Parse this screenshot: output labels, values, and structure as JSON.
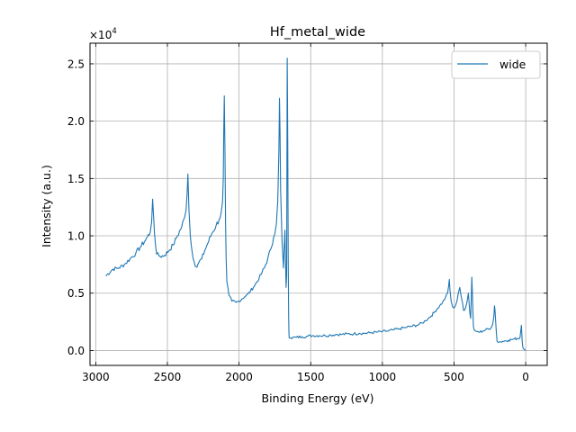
{
  "chart_data": {
    "type": "line",
    "title": "Hf_metal_wide",
    "xlabel": "Binding Energy (eV)",
    "ylabel": "Intensity (a.u.)",
    "y_multiplier_label": "×10",
    "y_multiplier_exponent": "4",
    "xlim": [
      3040,
      -150
    ],
    "ylim": [
      -1300,
      26800
    ],
    "x_reversed": true,
    "grid": true,
    "legend_position": "upper-right",
    "x_ticks": [
      3000,
      2500,
      2000,
      1500,
      1000,
      500,
      0
    ],
    "x_tick_labels": [
      "3000",
      "2500",
      "2000",
      "1500",
      "1000",
      "500",
      "0"
    ],
    "y_ticks": [
      0,
      5000,
      10000,
      15000,
      20000,
      25000
    ],
    "y_tick_labels": [
      "0.0",
      "0.5",
      "1.0",
      "1.5",
      "2.0",
      "2.5"
    ],
    "colors": {
      "series": "#1f77b4",
      "grid": "#b0b0b0",
      "axis": "#000000"
    },
    "series": [
      {
        "name": "wide",
        "x": [
          2930,
          2880,
          2840,
          2800,
          2760,
          2720,
          2690,
          2660,
          2640,
          2620,
          2610,
          2603,
          2598,
          2590,
          2575,
          2550,
          2520,
          2490,
          2460,
          2430,
          2400,
          2380,
          2370,
          2362,
          2357,
          2350,
          2340,
          2320,
          2300,
          2280,
          2260,
          2240,
          2220,
          2190,
          2160,
          2140,
          2125,
          2115,
          2110,
          2107,
          2103,
          2098,
          2094,
          2090,
          2085,
          2070,
          2050,
          2020,
          2000,
          1980,
          1960,
          1940,
          1920,
          1900,
          1880,
          1860,
          1840,
          1820,
          1800,
          1780,
          1760,
          1750,
          1740,
          1730,
          1722,
          1718,
          1714,
          1710,
          1700,
          1690,
          1685,
          1680,
          1676,
          1672,
          1668,
          1664,
          1662,
          1660,
          1657,
          1654,
          1652,
          1650,
          1640,
          1600,
          1560,
          1520,
          1480,
          1440,
          1400,
          1360,
          1320,
          1280,
          1240,
          1200,
          1160,
          1120,
          1080,
          1040,
          1000,
          960,
          920,
          880,
          840,
          800,
          760,
          720,
          700,
          680,
          660,
          640,
          620,
          600,
          580,
          560,
          545,
          538,
          533,
          528,
          520,
          510,
          500,
          490,
          480,
          470,
          460,
          450,
          440,
          434,
          428,
          420,
          410,
          400,
          390,
          384,
          380,
          376,
          372,
          368,
          365,
          360,
          350,
          340,
          320,
          300,
          280,
          260,
          240,
          230,
          222,
          218,
          214,
          210,
          205,
          200,
          190,
          180,
          160,
          140,
          120,
          100,
          80,
          60,
          40,
          30,
          25,
          22,
          20,
          18,
          15,
          10,
          5,
          0
        ],
        "values": [
          6500,
          7100,
          7200,
          7500,
          8000,
          8500,
          9000,
          9500,
          9900,
          10300,
          11200,
          13200,
          12100,
          10200,
          8400,
          8200,
          8300,
          8700,
          9200,
          10000,
          10800,
          11600,
          12200,
          13800,
          15400,
          12400,
          10000,
          8000,
          7300,
          7700,
          8000,
          8700,
          9300,
          10200,
          10900,
          11400,
          12000,
          13000,
          15000,
          19000,
          22200,
          17000,
          11000,
          8000,
          6000,
          4800,
          4300,
          4200,
          4300,
          4500,
          4700,
          4900,
          5200,
          5500,
          5900,
          6300,
          6800,
          7300,
          8000,
          8800,
          9800,
          10200,
          11000,
          13000,
          17500,
          22000,
          19000,
          14000,
          9500,
          7200,
          9000,
          10500,
          8000,
          5500,
          6500,
          25500,
          22000,
          17500,
          8000,
          3000,
          1500,
          1100,
          1100,
          1150,
          1200,
          1250,
          1300,
          1300,
          1300,
          1350,
          1400,
          1400,
          1450,
          1450,
          1500,
          1500,
          1550,
          1600,
          1650,
          1700,
          1800,
          1900,
          2000,
          2100,
          2200,
          2400,
          2600,
          2800,
          3000,
          3300,
          3600,
          3900,
          4200,
          4600,
          5000,
          5600,
          6200,
          5200,
          4300,
          3800,
          3700,
          3900,
          4300,
          5000,
          5500,
          4700,
          4100,
          3500,
          3500,
          3700,
          4200,
          5000,
          3300,
          2800,
          4500,
          6400,
          5000,
          3300,
          2100,
          1800,
          1700,
          1650,
          1600,
          1700,
          1800,
          1900,
          2000,
          2300,
          3000,
          3900,
          3500,
          2600,
          1600,
          800,
          700,
          750,
          800,
          850,
          900,
          950,
          1000,
          1050,
          1100,
          2200,
          900,
          500,
          300,
          200,
          150,
          100,
          50,
          0
        ]
      }
    ]
  }
}
